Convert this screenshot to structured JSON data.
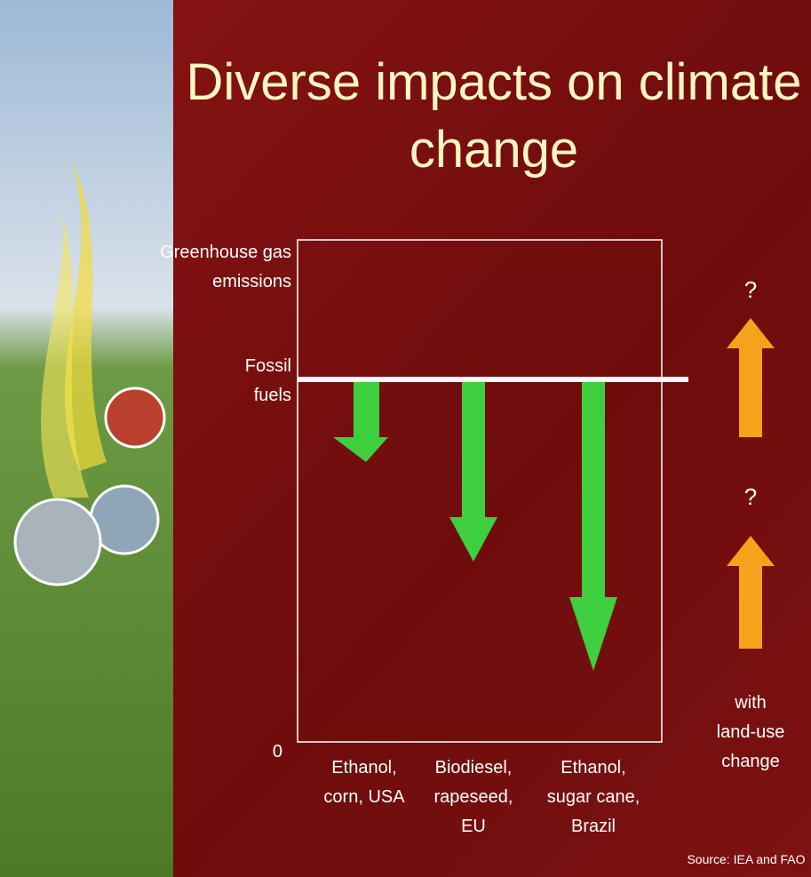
{
  "title": "Diverse impacts on climate change",
  "y_axis": {
    "label": "Greenhouse gas emissions",
    "reference": "Fossil fuels",
    "zero": "0"
  },
  "categories": [
    "Ethanol, corn, USA",
    "Biodiesel, rapeseed, EU",
    "Ethanol, sugar cane, Brazil"
  ],
  "land_use": {
    "marks": [
      "?",
      "?"
    ],
    "label": "with land-use change"
  },
  "source": "Source: IEA and FAO"
}
